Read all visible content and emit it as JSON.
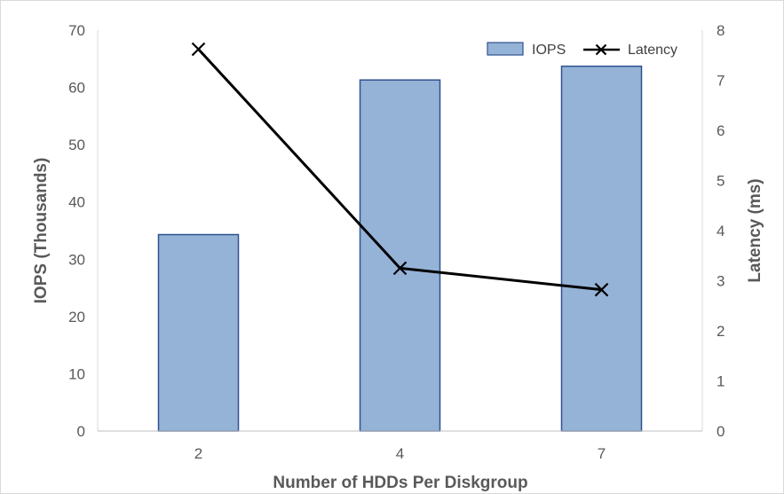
{
  "chart_data": {
    "type": "bar",
    "categories": [
      "2",
      "4",
      "7"
    ],
    "series": [
      {
        "name": "IOPS",
        "type": "bar",
        "axis": "left",
        "values": [
          34.3,
          61.3,
          63.7
        ],
        "color": "#95b3d7",
        "stroke": "#2f528f"
      },
      {
        "name": "Latency",
        "type": "line",
        "axis": "right",
        "values": [
          7.62,
          3.25,
          2.82
        ],
        "color": "#000000",
        "marker": "x"
      }
    ],
    "xlabel": "Number of HDDs Per Diskgroup",
    "ylabel": "IOPS (Thousands)",
    "y2label": "Latency (ms)",
    "ylim": [
      0,
      70
    ],
    "y2lim": [
      0,
      8
    ],
    "yticks": [
      "0",
      "10",
      "20",
      "30",
      "40",
      "50",
      "60",
      "70"
    ],
    "y2ticks": [
      "0",
      "1",
      "2",
      "3",
      "4",
      "5",
      "6",
      "7",
      "8"
    ],
    "grid": "none",
    "legend": "top-right"
  }
}
